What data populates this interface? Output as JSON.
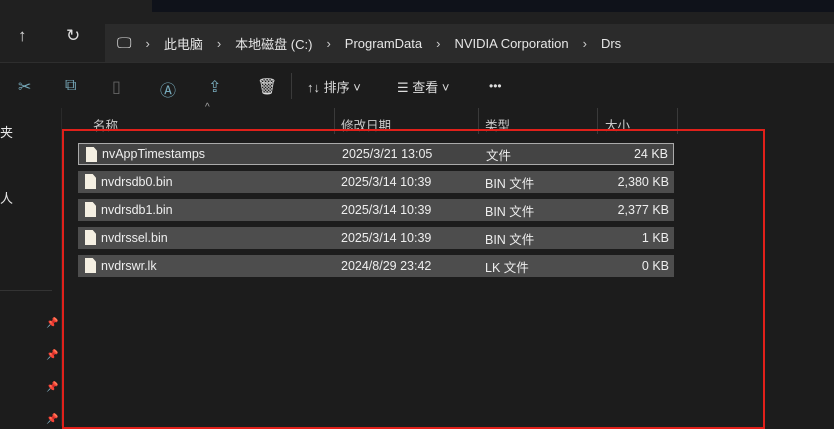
{
  "nav": {
    "up_icon": "arrow-up",
    "refresh_icon": "refresh"
  },
  "breadcrumb": [
    "此电脑",
    "本地磁盘 (C:)",
    "ProgramData",
    "NVIDIA Corporation",
    "Drs"
  ],
  "toolbar": {
    "sort_label": "排序",
    "view_label": "查看",
    "more_label": "•••"
  },
  "sidebar": {
    "partial_items": [
      "夹",
      "人"
    ]
  },
  "columns": [
    "名称",
    "修改日期",
    "类型",
    "大小"
  ],
  "files": [
    {
      "name": "nvAppTimestamps",
      "date": "2025/3/21 13:05",
      "type": "文件",
      "size": "24 KB"
    },
    {
      "name": "nvdrsdb0.bin",
      "date": "2025/3/14 10:39",
      "type": "BIN 文件",
      "size": "2,380 KB"
    },
    {
      "name": "nvdrsdb1.bin",
      "date": "2025/3/14 10:39",
      "type": "BIN 文件",
      "size": "2,377 KB"
    },
    {
      "name": "nvdrssel.bin",
      "date": "2025/3/14 10:39",
      "type": "BIN 文件",
      "size": "1 KB"
    },
    {
      "name": "nvdrswr.lk",
      "date": "2024/8/29 23:42",
      "type": "LK 文件",
      "size": "0 KB"
    }
  ],
  "colors": {
    "highlight_frame": "#e0201a",
    "selection": "#4d4d4d"
  }
}
